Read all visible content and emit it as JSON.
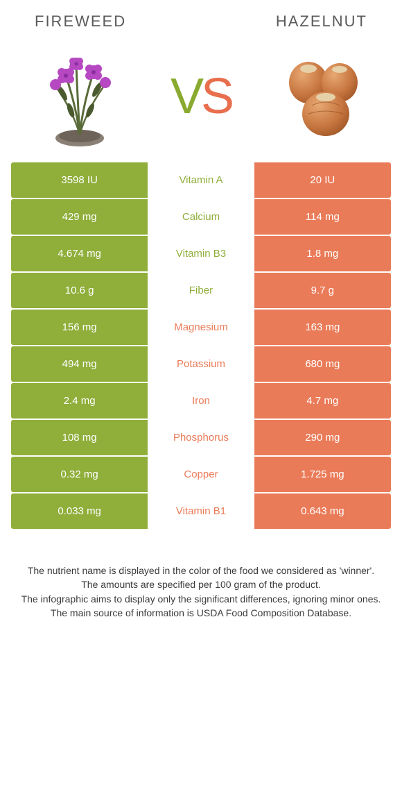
{
  "colors": {
    "left_bg": "#8fae3a",
    "right_bg": "#ea7b58",
    "left_text": "#8fae3a",
    "right_text": "#ea7b58"
  },
  "header": {
    "left_title": "Fireweed",
    "right_title": "Hazelnut"
  },
  "vs": {
    "v": "V",
    "s": "S"
  },
  "nutrients": [
    {
      "label": "Vitamin A",
      "left": "3598 IU",
      "right": "20 IU",
      "winner": "left"
    },
    {
      "label": "Calcium",
      "left": "429 mg",
      "right": "114 mg",
      "winner": "left"
    },
    {
      "label": "Vitamin B3",
      "left": "4.674 mg",
      "right": "1.8 mg",
      "winner": "left"
    },
    {
      "label": "Fiber",
      "left": "10.6 g",
      "right": "9.7 g",
      "winner": "left"
    },
    {
      "label": "Magnesium",
      "left": "156 mg",
      "right": "163 mg",
      "winner": "right"
    },
    {
      "label": "Potassium",
      "left": "494 mg",
      "right": "680 mg",
      "winner": "right"
    },
    {
      "label": "Iron",
      "left": "2.4 mg",
      "right": "4.7 mg",
      "winner": "right"
    },
    {
      "label": "Phosphorus",
      "left": "108 mg",
      "right": "290 mg",
      "winner": "right"
    },
    {
      "label": "Copper",
      "left": "0.32 mg",
      "right": "1.725 mg",
      "winner": "right"
    },
    {
      "label": "Vitamin B1",
      "left": "0.033 mg",
      "right": "0.643 mg",
      "winner": "right"
    }
  ],
  "footer": {
    "line1": "The nutrient name is displayed in the color of the food we considered as 'winner'.",
    "line2": "The amounts are specified per 100 gram of the product.",
    "line3": "The infographic aims to display only the significant differences, ignoring minor ones.",
    "line4": "The main source of information is USDA Food Composition Database."
  }
}
